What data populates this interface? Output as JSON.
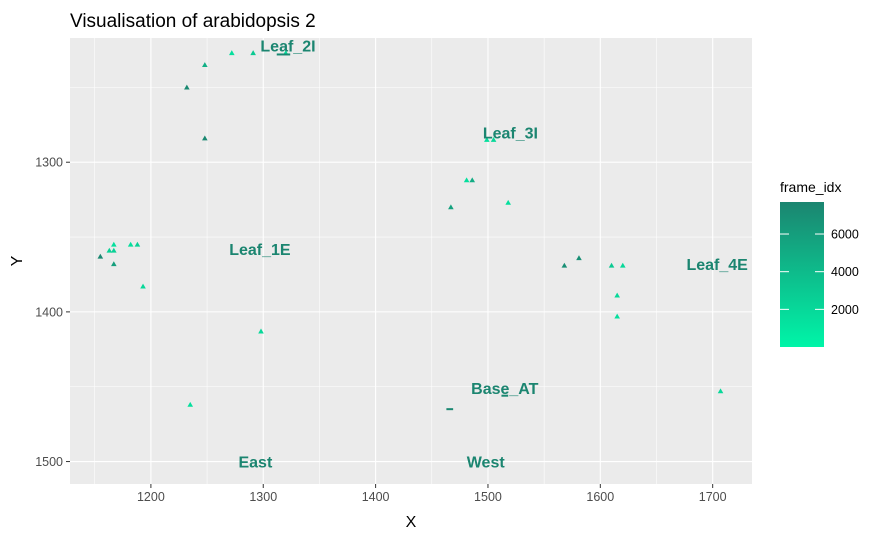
{
  "chart_data": {
    "type": "scatter",
    "title": "Visualisation of arabidopsis  2",
    "xlabel": "X",
    "ylabel": "Y",
    "xlim": [
      1128,
      1735
    ],
    "ylim": [
      1217,
      1515
    ],
    "y_reversed": true,
    "x_ticks": [
      1200,
      1300,
      1400,
      1500,
      1600,
      1700
    ],
    "y_ticks": [
      1300,
      1400,
      1500
    ],
    "grid": true,
    "marker": "triangle",
    "color_scale": {
      "title": "frame_idx",
      "low_color": "#00f5a8",
      "high_color": "#1b8570",
      "ticks": [
        2000,
        4000,
        6000
      ],
      "range": [
        1,
        7700
      ]
    },
    "points": [
      {
        "x": 1232,
        "y": 1250,
        "frame_idx": 7500
      },
      {
        "x": 1248,
        "y": 1235,
        "frame_idx": 4800
      },
      {
        "x": 1248,
        "y": 1284,
        "frame_idx": 7500
      },
      {
        "x": 1272,
        "y": 1227,
        "frame_idx": 1500
      },
      {
        "x": 1291,
        "y": 1227,
        "frame_idx": 3000
      },
      {
        "x": 1320,
        "y": 1227,
        "frame_idx": 1500
      },
      {
        "x": 1155,
        "y": 1363,
        "frame_idx": 7500
      },
      {
        "x": 1163,
        "y": 1359,
        "frame_idx": 2500
      },
      {
        "x": 1167,
        "y": 1359,
        "frame_idx": 2500
      },
      {
        "x": 1167,
        "y": 1355,
        "frame_idx": 1500
      },
      {
        "x": 1167,
        "y": 1368,
        "frame_idx": 6000
      },
      {
        "x": 1182,
        "y": 1355,
        "frame_idx": 1500
      },
      {
        "x": 1188,
        "y": 1355,
        "frame_idx": 2500
      },
      {
        "x": 1193,
        "y": 1383,
        "frame_idx": 2000
      },
      {
        "x": 1298,
        "y": 1413,
        "frame_idx": 2000
      },
      {
        "x": 1235,
        "y": 1462,
        "frame_idx": 1500
      },
      {
        "x": 1467,
        "y": 1330,
        "frame_idx": 5800
      },
      {
        "x": 1481,
        "y": 1312,
        "frame_idx": 1500
      },
      {
        "x": 1486,
        "y": 1312,
        "frame_idx": 5000
      },
      {
        "x": 1499,
        "y": 1285,
        "frame_idx": 1500
      },
      {
        "x": 1505,
        "y": 1285,
        "frame_idx": 2000
      },
      {
        "x": 1518,
        "y": 1327,
        "frame_idx": 1500
      },
      {
        "x": 1568,
        "y": 1369,
        "frame_idx": 7000
      },
      {
        "x": 1581,
        "y": 1364,
        "frame_idx": 7000
      },
      {
        "x": 1610,
        "y": 1369,
        "frame_idx": 3000
      },
      {
        "x": 1620,
        "y": 1369,
        "frame_idx": 2000
      },
      {
        "x": 1615,
        "y": 1389,
        "frame_idx": 2000
      },
      {
        "x": 1615,
        "y": 1403,
        "frame_idx": 1500
      },
      {
        "x": 1707,
        "y": 1453,
        "frame_idx": 2000
      }
    ],
    "segments": [
      {
        "x1": 1463,
        "x2": 1469,
        "y": 1465,
        "frame_idx": 7500
      },
      {
        "x1": 1512,
        "x2": 1518,
        "y": 1456,
        "frame_idx": 7500
      },
      {
        "x1": 1312,
        "x2": 1324,
        "y": 1228,
        "frame_idx": 7500
      }
    ],
    "annotations": [
      {
        "text": "Leaf_2I",
        "x": 1322,
        "y": 1228
      },
      {
        "text": "Leaf_3I",
        "x": 1520,
        "y": 1286
      },
      {
        "text": "Leaf_1E",
        "x": 1297,
        "y": 1364
      },
      {
        "text": "Leaf_4E",
        "x": 1704,
        "y": 1374
      },
      {
        "text": "Base_AT",
        "x": 1515,
        "y": 1457
      },
      {
        "text": "East",
        "x": 1293,
        "y": 1506
      },
      {
        "text": "West",
        "x": 1498,
        "y": 1506
      }
    ]
  }
}
